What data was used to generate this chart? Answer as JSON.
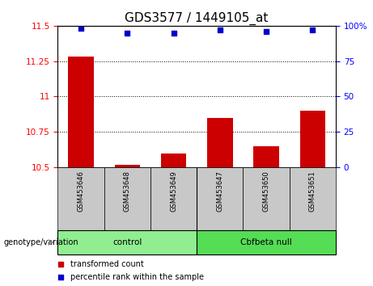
{
  "title": "GDS3577 / 1449105_at",
  "samples": [
    "GSM453646",
    "GSM453648",
    "GSM453649",
    "GSM453647",
    "GSM453650",
    "GSM453651"
  ],
  "transformed_counts": [
    11.28,
    10.52,
    10.6,
    10.85,
    10.65,
    10.9
  ],
  "percentile_ranks": [
    98,
    95,
    95,
    97,
    96,
    97
  ],
  "bar_bottom": 10.5,
  "ylim_left": [
    10.5,
    11.5
  ],
  "ylim_right": [
    0,
    100
  ],
  "yticks_left": [
    10.5,
    10.75,
    11.0,
    11.25,
    11.5
  ],
  "ytick_labels_left": [
    "10.5",
    "10.75",
    "11",
    "11.25",
    "11.5"
  ],
  "yticks_right": [
    0,
    25,
    50,
    75,
    100
  ],
  "ytick_labels_right": [
    "0",
    "25",
    "50",
    "75",
    "100%"
  ],
  "groups": [
    {
      "label": "control",
      "indices": [
        0,
        1,
        2
      ],
      "color": "#90EE90"
    },
    {
      "label": "Cbfbeta null",
      "indices": [
        3,
        4,
        5
      ],
      "color": "#55DD55"
    }
  ],
  "group_label": "genotype/variation",
  "bar_color": "#CC0000",
  "dot_color": "#0000CC",
  "dot_size": 25,
  "legend_items": [
    {
      "label": "transformed count",
      "color": "#CC0000"
    },
    {
      "label": "percentile rank within the sample",
      "color": "#0000CC"
    }
  ],
  "grid_color": "black",
  "grid_linestyle": "dotted",
  "grid_linewidth": 0.7,
  "title_fontsize": 11,
  "sample_box_color": "#c8c8c8",
  "bar_width": 0.55
}
